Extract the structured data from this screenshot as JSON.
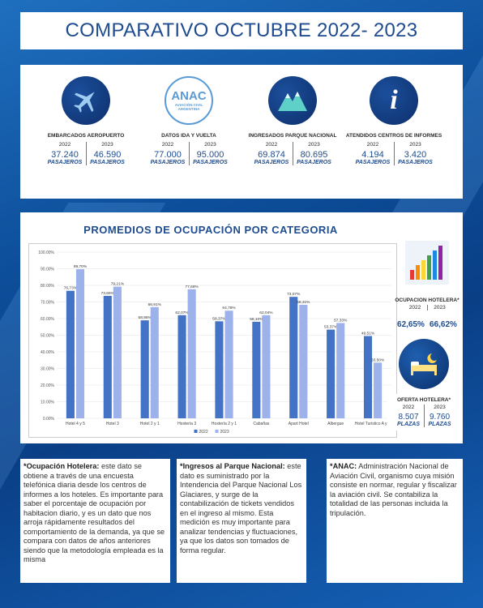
{
  "title": "COMPARATIVO OCTUBRE 2022- 2023",
  "stats": [
    {
      "icon": "airplane-icon",
      "label": "EMBARCADOS AEROPUERTO",
      "year1": "2022",
      "year2": "2023",
      "value1": "37.240",
      "value2": "46.590",
      "unit": "PASAJEROS"
    },
    {
      "icon": "anac-logo",
      "logo_text": "ANAC",
      "logo_sub1": "AVIACIÓN CIVIL",
      "logo_sub2": "ARGENTINA",
      "label": "DATOS IDA Y VUELTA",
      "year1": "2022",
      "year2": "2023",
      "value1": "77.000",
      "value2": "95.000",
      "unit": "PASAJEROS"
    },
    {
      "icon": "mountain-icon",
      "label": "INGRESADOS PARQUE NACIONAL",
      "year1": "2022",
      "year2": "2023",
      "value1": "69.874",
      "value2": "80.695",
      "unit": "PASAJEROS"
    },
    {
      "icon": "info-icon",
      "label": "ATENDIDOS CENTROS DE INFORMES",
      "year1": "2022",
      "year2": "2023",
      "value1": "4.194",
      "value2": "3.420",
      "unit": "PASAJEROS"
    }
  ],
  "chart_section_title": "PROMEDIOS DE OCUPACIÓN POR CATEGORIA",
  "chart_data": {
    "type": "bar",
    "categories": [
      "Hotel 4 y 5",
      "Hotel 3",
      "Hotel 2 y 1",
      "Hostería 3",
      "Hostería 2 y 1",
      "Cabañas",
      "Apart Hotel",
      "Albergue",
      "Hotel Turistico A y B"
    ],
    "series": [
      {
        "name": "2022",
        "values": [
          76.73,
          73.66,
          58.95,
          62.07,
          58.37,
          58.1,
          73.07,
          53.37,
          49.51
        ],
        "labels": [
          "76,73%",
          "73,66%",
          "58,95%",
          "62,07%",
          "58,37%",
          "58,10%",
          "73,07%",
          "53,37%",
          "49,51%"
        ]
      },
      {
        "name": "2023",
        "values": [
          89.7,
          79.21,
          66.91,
          77.68,
          64.76,
          62.04,
          68.31,
          57.33,
          33.5
        ],
        "labels": [
          "89,70%",
          "79,21%",
          "66,91%",
          "77,68%",
          "64,76%",
          "62,04%",
          "68,31%",
          "57,33%",
          "33,50%"
        ]
      }
    ],
    "ylim": [
      0,
      100
    ],
    "yticks": [
      "0.00%",
      "10.00%",
      "20.00%",
      "30.00%",
      "40.00%",
      "50.00%",
      "60.00%",
      "70.00%",
      "80.00%",
      "90.00%",
      "100.00%"
    ],
    "legend": "bottom",
    "colors": {
      "2022": "#4472c4",
      "2023": "#9db2ea"
    }
  },
  "ocupacion": {
    "icon": "bar-chart-icon",
    "label": "OCUPACION HOTELERA*",
    "year1": "2022",
    "year2": "2023",
    "value1": "62,65%",
    "value2": "66,62%"
  },
  "oferta": {
    "icon": "bed-icon",
    "label": "OFERTA HOTELERA*",
    "year1": "2022",
    "year2": "2023",
    "value1": "8.507",
    "value2": "9.760",
    "unit": "PLAZAS"
  },
  "notes": [
    {
      "heading": "*Ocupación Hotelera:",
      "text": " este dato se obtiene a través de una encuesta telefónica diaria desde los centros de informes a los hoteles. Es importante para saber el porcentaje de ocupación por habitacion diario, y es un dato que nos arroja rápidamente resultados del comportamiento de la demanda, ya que se compara con datos de años anteriores siendo que la metodología empleada es la misma"
    },
    {
      "heading": "*Ingresos al Parque Nacional:",
      "text": " este dato es suministrado por la Intendencia del Parque Nacional Los Glaciares, y surge de la contabilización de tickets vendidos en el ingreso al mismo. Esta medición es muy importante para analizar tendencias y fluctuaciones, ya que los datos son tomados de forma regular."
    },
    {
      "heading": "*ANAC:",
      "text": " Administración Nacional de Aviación Civil, organismo cuya misión consiste en normar, regular y fiscalizar la aviación civil. Se contabiliza la totalidad de las personas incluida la tripulación."
    }
  ]
}
